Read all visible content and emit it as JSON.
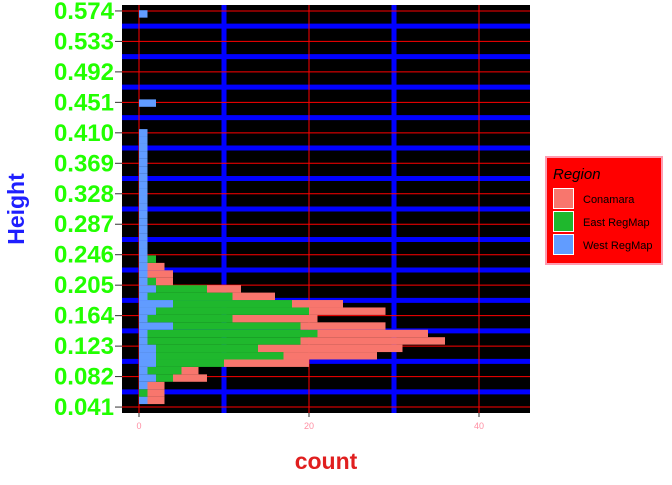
{
  "chart_data": {
    "type": "bar",
    "orientation": "horizontal",
    "stacked": true,
    "xlabel": "count",
    "ylabel": "Height",
    "xlim": [
      -2,
      46
    ],
    "ylim": [
      0.033,
      0.582
    ],
    "x_ticks": [
      "0",
      "20",
      "40"
    ],
    "x_tick_values": [
      0,
      20,
      40
    ],
    "y_ticks": [
      "0.041",
      "0.082",
      "0.123",
      "0.164",
      "0.205",
      "0.246",
      "0.287",
      "0.328",
      "0.369",
      "0.410",
      "0.451",
      "0.492",
      "0.533",
      "0.574"
    ],
    "y_tick_values": [
      0.041,
      0.082,
      0.123,
      0.164,
      0.205,
      0.246,
      0.287,
      0.328,
      0.369,
      0.41,
      0.451,
      0.492,
      0.533,
      0.574
    ],
    "bin_width": 0.01,
    "bin_centers": [
      0.05,
      0.06,
      0.07,
      0.08,
      0.09,
      0.1,
      0.11,
      0.12,
      0.13,
      0.14,
      0.15,
      0.16,
      0.17,
      0.18,
      0.19,
      0.2,
      0.21,
      0.22,
      0.23,
      0.24,
      0.25,
      0.26,
      0.27,
      0.28,
      0.29,
      0.3,
      0.31,
      0.32,
      0.33,
      0.34,
      0.35,
      0.36,
      0.37,
      0.38,
      0.39,
      0.4,
      0.41,
      0.42,
      0.43,
      0.44,
      0.45,
      0.46,
      0.47,
      0.48,
      0.49,
      0.5,
      0.51,
      0.52,
      0.53,
      0.54,
      0.55,
      0.56,
      0.57
    ],
    "series": [
      {
        "name": "West RegMap",
        "color": "#619CFF",
        "values": [
          1,
          0,
          1,
          2,
          1,
          2,
          2,
          2,
          1,
          1,
          4,
          1,
          2,
          4,
          1,
          2,
          1,
          1,
          1,
          1,
          1,
          1,
          1,
          1,
          1,
          1,
          1,
          1,
          1,
          1,
          1,
          1,
          1,
          1,
          1,
          1,
          1,
          0,
          0,
          0,
          2,
          0,
          0,
          0,
          0,
          0,
          0,
          0,
          0,
          0,
          0,
          0,
          1
        ]
      },
      {
        "name": "East RegMap",
        "color": "#1FB82D",
        "values": [
          0,
          1,
          0,
          2,
          4,
          8,
          15,
          12,
          18,
          20,
          15,
          10,
          18,
          14,
          10,
          6,
          1,
          0,
          0,
          1,
          0,
          0,
          0,
          0,
          0,
          0,
          0,
          0,
          0,
          0,
          0,
          0,
          0,
          0,
          0,
          0,
          0,
          0,
          0,
          0,
          0,
          0,
          0,
          0,
          0,
          0,
          0,
          0,
          0,
          0,
          0,
          0,
          0
        ]
      },
      {
        "name": "Conamara",
        "color": "#F8766D",
        "values": [
          2,
          2,
          2,
          4,
          2,
          10,
          11,
          17,
          17,
          13,
          10,
          10,
          9,
          6,
          5,
          4,
          2,
          3,
          2,
          0,
          0,
          0,
          0,
          0,
          0,
          0,
          0,
          0,
          0,
          0,
          0,
          0,
          0,
          0,
          0,
          0,
          0,
          0,
          0,
          0,
          0,
          0,
          0,
          0,
          0,
          0,
          0,
          0,
          0,
          0,
          0,
          0,
          0
        ]
      }
    ],
    "legend": {
      "title": "Region",
      "position": "right",
      "entries": [
        "Conamara",
        "East RegMap",
        "West RegMap"
      ]
    },
    "colors": {
      "panel_background": "#000000",
      "major_grid": "#ff0000",
      "minor_grid": "#0000ff",
      "legend_background": "#ff0000",
      "legend_border": "#ff9bb0"
    }
  }
}
